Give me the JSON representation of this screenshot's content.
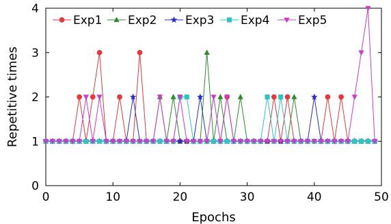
{
  "chart_data": {
    "type": "line",
    "xlabel": "Epochs",
    "ylabel": "Repetitive times",
    "xlim": [
      0,
      50
    ],
    "ylim": [
      0,
      4
    ],
    "xticks": [
      0,
      10,
      20,
      30,
      40,
      50
    ],
    "yticks": [
      0,
      1,
      2,
      3,
      4
    ],
    "grid": false,
    "legend_position": "top-left",
    "x": [
      0,
      1,
      2,
      3,
      4,
      5,
      6,
      7,
      8,
      9,
      10,
      11,
      12,
      13,
      14,
      15,
      16,
      17,
      18,
      19,
      20,
      21,
      22,
      23,
      24,
      25,
      26,
      27,
      28,
      29,
      30,
      31,
      32,
      33,
      34,
      35,
      36,
      37,
      38,
      39,
      40,
      41,
      42,
      43,
      44,
      45,
      46,
      47,
      48,
      49
    ],
    "series": [
      {
        "name": "Exp1",
        "color": "#e8383b",
        "marker": "circle",
        "values": [
          1,
          1,
          1,
          1,
          1,
          2,
          1,
          2,
          3,
          1,
          1,
          2,
          1,
          1,
          3,
          1,
          1,
          1,
          1,
          1,
          1,
          1,
          1,
          1,
          1,
          1,
          1,
          2,
          1,
          1,
          1,
          1,
          1,
          1,
          2,
          1,
          2,
          1,
          1,
          1,
          1,
          1,
          2,
          1,
          2,
          1,
          1,
          1,
          1,
          1
        ]
      },
      {
        "name": "Exp2",
        "color": "#2e8b2e",
        "marker": "triangle-up",
        "values": [
          1,
          1,
          1,
          1,
          1,
          1,
          1,
          1,
          1,
          1,
          1,
          1,
          1,
          1,
          1,
          1,
          1,
          2,
          1,
          2,
          1,
          1,
          1,
          1,
          3,
          1,
          2,
          1,
          1,
          2,
          1,
          1,
          1,
          1,
          1,
          1,
          1,
          2,
          1,
          1,
          1,
          1,
          1,
          1,
          1,
          1,
          1,
          1,
          1,
          1
        ]
      },
      {
        "name": "Exp3",
        "color": "#2a2ad4",
        "marker": "star",
        "values": [
          1,
          1,
          1,
          1,
          1,
          1,
          1,
          1,
          1,
          1,
          1,
          1,
          1,
          2,
          1,
          1,
          1,
          1,
          1,
          1,
          1,
          1,
          1,
          2,
          1,
          1,
          1,
          1,
          1,
          1,
          1,
          1,
          1,
          1,
          1,
          1,
          1,
          1,
          1,
          1,
          2,
          1,
          1,
          1,
          1,
          1,
          1,
          1,
          1,
          1
        ]
      },
      {
        "name": "Exp4",
        "color": "#2ec4c4",
        "marker": "square",
        "values": [
          1,
          1,
          1,
          1,
          1,
          1,
          1,
          1,
          1,
          1,
          1,
          1,
          1,
          1,
          1,
          1,
          1,
          1,
          1,
          1,
          2,
          2,
          1,
          1,
          1,
          1,
          1,
          1,
          1,
          1,
          1,
          1,
          1,
          2,
          1,
          2,
          1,
          1,
          1,
          1,
          1,
          1,
          1,
          1,
          1,
          1,
          1,
          1,
          1,
          1
        ]
      },
      {
        "name": "Exp5",
        "color": "#c83cc8",
        "marker": "triangle-down",
        "values": [
          1,
          1,
          1,
          1,
          1,
          1,
          2,
          1,
          2,
          1,
          1,
          1,
          1,
          1,
          1,
          1,
          1,
          2,
          1,
          1,
          2,
          1,
          1,
          1,
          1,
          2,
          1,
          2,
          1,
          1,
          1,
          1,
          1,
          1,
          1,
          1,
          1,
          1,
          1,
          1,
          1,
          1,
          1,
          1,
          1,
          1,
          2,
          3,
          4,
          1
        ]
      }
    ]
  }
}
